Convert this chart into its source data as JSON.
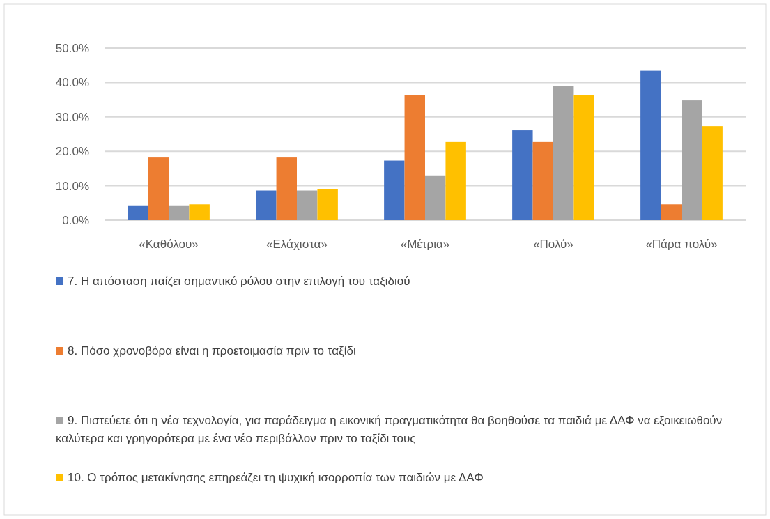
{
  "chart_data": {
    "type": "bar",
    "categories": [
      "«Καθόλου»",
      "«Ελάχιστα»",
      "«Μέτρια»",
      "«Πολύ»",
      "«Πάρα πολύ»"
    ],
    "series": [
      {
        "name": "7. Η απόσταση παίζει σημαντικό ρόλου στην επιλογή του ταξιδιού",
        "color": "#4472c4",
        "values": [
          4.3,
          8.6,
          17.3,
          26.1,
          43.4
        ]
      },
      {
        "name": "8. Πόσο χρονοβόρα είναι η προετοιμασία πριν το ταξίδι",
        "color": "#ed7d31",
        "values": [
          18.2,
          18.2,
          36.3,
          22.7,
          4.6
        ]
      },
      {
        "name": "9. Πιστεύετε ότι η νέα τεχνολογία, για παράδειγμα η εικονική πραγματικότητα θα βοηθούσε τα παιδιά με ΔΑΦ να εξοικειωθούν καλύτερα και γρηγορότερα με ένα νέο περιβάλλον πριν το ταξίδι τους",
        "color": "#a5a5a5",
        "values": [
          4.3,
          8.6,
          13.0,
          39.0,
          34.8
        ]
      },
      {
        "name": "10. Ο τρόπος μετακίνησης επηρεάζει τη ψυχική ισορροπία των παιδιών με ΔΑΦ",
        "color": "#ffc000",
        "values": [
          4.6,
          9.1,
          22.7,
          36.4,
          27.3
        ]
      }
    ],
    "ylim": [
      0,
      50
    ],
    "yticks": [
      {
        "value": 0,
        "label": "0.0%"
      },
      {
        "value": 10,
        "label": "10.0%"
      },
      {
        "value": 20,
        "label": "20.0%"
      },
      {
        "value": 30,
        "label": "30.0%"
      },
      {
        "value": 40,
        "label": "40.0%"
      },
      {
        "value": 50,
        "label": "50.0%"
      }
    ],
    "grid": "y",
    "legend": "bottom"
  }
}
